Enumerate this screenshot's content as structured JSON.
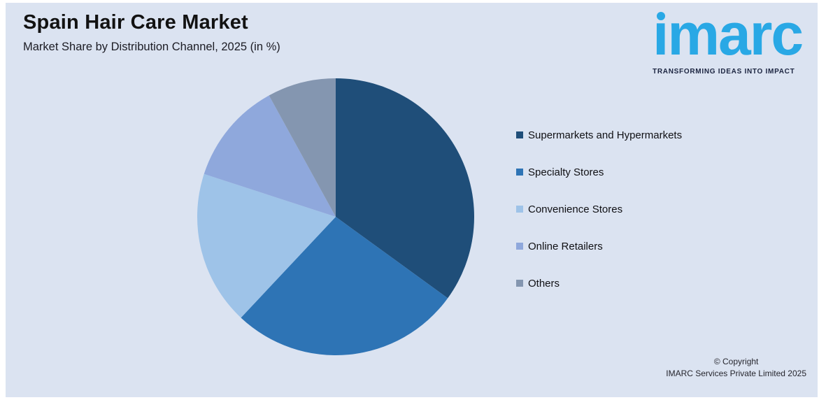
{
  "header": {
    "title": "Spain Hair Care Market",
    "subtitle": "Market Share by Distribution Channel, 2025 (in %)"
  },
  "logo": {
    "brand": "imarc",
    "tagline": "TRANSFORMING IDEAS INTO IMPACT",
    "brand_color": "#29a8e5",
    "tagline_color": "#1b2440"
  },
  "chart_data": {
    "type": "pie",
    "title": "Spain Hair Care Market",
    "subtitle": "Market Share by Distribution Channel, 2025 (in %)",
    "unit": "%",
    "labels": [
      "Supermarkets and Hypermarkets",
      "Specialty Stores",
      "Convenience Stores",
      "Online Retailers",
      "Others"
    ],
    "values": [
      35,
      27,
      18,
      12,
      8
    ],
    "colors": [
      "#1f4e79",
      "#2e74b5",
      "#9ec3e8",
      "#8fa8dc",
      "#8496b0"
    ],
    "start_angle_deg": 0,
    "direction": "clockwise",
    "legend_position": "right",
    "background_color": "#dbe3f1"
  },
  "footer": {
    "line1": "© Copyright",
    "line2": "IMARC Services Private Limited 2025"
  }
}
